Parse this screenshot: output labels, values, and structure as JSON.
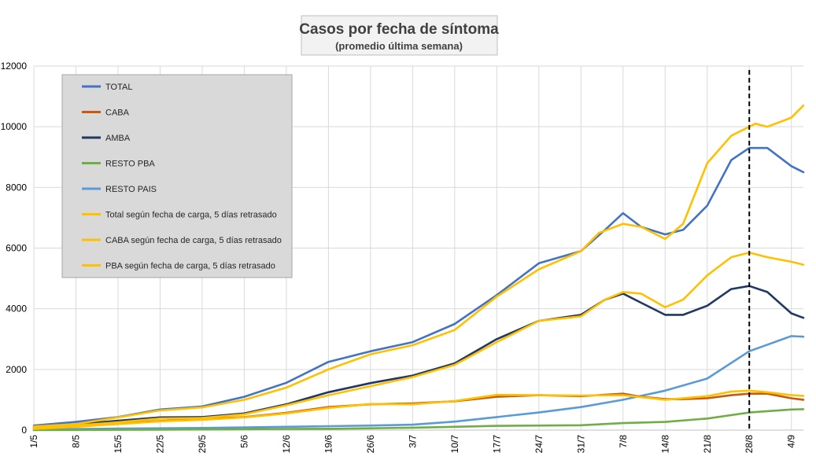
{
  "chart_data": {
    "type": "line",
    "title": "Casos por fecha de síntoma",
    "subtitle": "(promedio última semana)",
    "xlabel": "",
    "ylabel": "",
    "ylim": [
      0,
      12000
    ],
    "y_ticks": [
      0,
      2000,
      4000,
      6000,
      8000,
      10000,
      12000
    ],
    "grid": true,
    "legend_position": "top-left",
    "x_start_label": "1/5",
    "x_days": 128,
    "x_tick_labels": [
      "1/5",
      "8/5",
      "15/5",
      "22/5",
      "29/5",
      "5/6",
      "12/6",
      "19/6",
      "26/6",
      "3/7",
      "10/7",
      "17/7",
      "24/7",
      "31/7",
      "7/8",
      "14/8",
      "21/8",
      "28/8",
      "4/9"
    ],
    "x_tick_days": [
      0,
      7,
      14,
      21,
      28,
      35,
      42,
      49,
      56,
      63,
      70,
      77,
      84,
      91,
      98,
      105,
      112,
      119,
      126
    ],
    "reference_line_day": 119,
    "series": [
      {
        "name": "TOTAL",
        "color": "#4472C4",
        "days": [
          0,
          7,
          14,
          21,
          28,
          35,
          42,
          49,
          56,
          63,
          70,
          77,
          84,
          91,
          95,
          98,
          101,
          105,
          108,
          112,
          116,
          119,
          122,
          126,
          128
        ],
        "values": [
          150,
          270,
          430,
          680,
          780,
          1100,
          1560,
          2250,
          2600,
          2900,
          3500,
          4450,
          5500,
          5900,
          6600,
          7150,
          6700,
          6450,
          6600,
          7400,
          8900,
          9300,
          9300,
          8700,
          8500
        ]
      },
      {
        "name": "CABA",
        "color": "#C55A11",
        "days": [
          0,
          7,
          14,
          21,
          28,
          35,
          42,
          49,
          56,
          63,
          70,
          77,
          84,
          91,
          98,
          101,
          105,
          108,
          112,
          116,
          119,
          122,
          126,
          128
        ],
        "values": [
          50,
          120,
          220,
          300,
          360,
          430,
          570,
          760,
          850,
          880,
          950,
          1100,
          1150,
          1120,
          1200,
          1100,
          1020,
          1020,
          1050,
          1150,
          1200,
          1200,
          1050,
          1000
        ]
      },
      {
        "name": "AMBA",
        "color": "#1F3864",
        "days": [
          0,
          7,
          14,
          21,
          28,
          35,
          42,
          49,
          56,
          63,
          70,
          77,
          84,
          91,
          95,
          98,
          101,
          105,
          108,
          112,
          116,
          119,
          122,
          126,
          128
        ],
        "values": [
          100,
          190,
          310,
          420,
          430,
          550,
          850,
          1250,
          1550,
          1800,
          2200,
          3000,
          3600,
          3800,
          4300,
          4500,
          4200,
          3800,
          3800,
          4100,
          4650,
          4750,
          4550,
          3850,
          3700
        ]
      },
      {
        "name": "RESTO PBA",
        "color": "#70AD47",
        "days": [
          0,
          7,
          14,
          21,
          28,
          35,
          42,
          49,
          56,
          63,
          70,
          77,
          84,
          91,
          98,
          105,
          112,
          119,
          126,
          128
        ],
        "values": [
          0,
          5,
          10,
          15,
          20,
          30,
          40,
          45,
          60,
          80,
          110,
          140,
          150,
          160,
          230,
          270,
          380,
          580,
          680,
          690
        ]
      },
      {
        "name": "RESTO PAIS",
        "color": "#5B9BD5",
        "days": [
          0,
          7,
          14,
          21,
          28,
          35,
          42,
          49,
          56,
          63,
          70,
          77,
          84,
          91,
          98,
          105,
          112,
          119,
          126,
          128
        ],
        "values": [
          20,
          35,
          50,
          60,
          70,
          90,
          110,
          130,
          150,
          180,
          280,
          430,
          580,
          760,
          1000,
          1300,
          1700,
          2600,
          3100,
          3080
        ]
      },
      {
        "name": "Total según fecha de carga, 5 días retrasado",
        "color": "#FFC000",
        "days": [
          0,
          7,
          14,
          21,
          28,
          35,
          42,
          49,
          56,
          63,
          70,
          77,
          84,
          91,
          94,
          98,
          101,
          105,
          108,
          112,
          116,
          119,
          120,
          122,
          126,
          128
        ],
        "values": [
          120,
          200,
          420,
          650,
          750,
          1000,
          1400,
          2000,
          2500,
          2800,
          3300,
          4400,
          5300,
          5900,
          6500,
          6800,
          6700,
          6300,
          6800,
          8800,
          9700,
          10000,
          10100,
          10000,
          10300,
          10700
        ]
      },
      {
        "name": "CABA según fecha de carga, 5 días retrasado",
        "color": "#FFC000",
        "days": [
          0,
          7,
          14,
          21,
          28,
          35,
          42,
          49,
          56,
          63,
          70,
          77,
          84,
          91,
          98,
          105,
          112,
          116,
          119,
          122,
          126,
          128
        ],
        "values": [
          40,
          110,
          200,
          290,
          340,
          420,
          550,
          730,
          860,
          850,
          960,
          1160,
          1150,
          1140,
          1150,
          1000,
          1120,
          1270,
          1300,
          1250,
          1150,
          1130
        ]
      },
      {
        "name": "PBA según fecha de carga, 5 días retrasado",
        "color": "#FFC000",
        "days": [
          0,
          7,
          14,
          21,
          28,
          35,
          42,
          49,
          56,
          63,
          70,
          77,
          84,
          91,
          95,
          98,
          101,
          105,
          108,
          112,
          116,
          119,
          122,
          126,
          128
        ],
        "values": [
          70,
          150,
          260,
          380,
          400,
          520,
          820,
          1150,
          1450,
          1750,
          2150,
          2900,
          3600,
          3750,
          4300,
          4550,
          4500,
          4050,
          4300,
          5100,
          5700,
          5850,
          5700,
          5550,
          5450
        ]
      }
    ]
  }
}
